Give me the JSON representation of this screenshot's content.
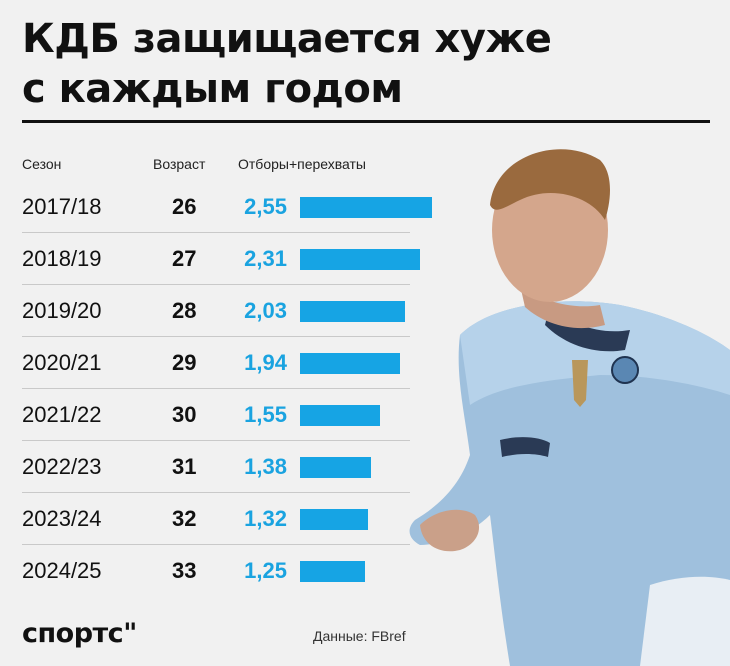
{
  "title_line1": "КДБ защищается хуже",
  "title_line2": "с каждым годом",
  "headers": {
    "season": "Сезон",
    "age": "Возраст",
    "value": "Отборы+перехваты"
  },
  "chart_data": {
    "type": "bar",
    "categories": [
      "2017/18",
      "2018/19",
      "2019/20",
      "2020/21",
      "2021/22",
      "2022/23",
      "2023/24",
      "2024/25"
    ],
    "ages": [
      "26",
      "27",
      "28",
      "29",
      "30",
      "31",
      "32",
      "33"
    ],
    "values": [
      2.55,
      2.31,
      2.03,
      1.94,
      1.55,
      1.38,
      1.32,
      1.25
    ],
    "value_labels": [
      "2,55",
      "2,31",
      "2,03",
      "1,94",
      "1,55",
      "1,38",
      "1,32",
      "1,25"
    ],
    "xlim": [
      0,
      2.55
    ],
    "bar_color": "#16a4e4"
  },
  "footer": {
    "logo": "спортс\"",
    "source": "Данные: FBref"
  },
  "colors": {
    "value_text": "#1aa3e0",
    "background": "#f1f1f1"
  }
}
